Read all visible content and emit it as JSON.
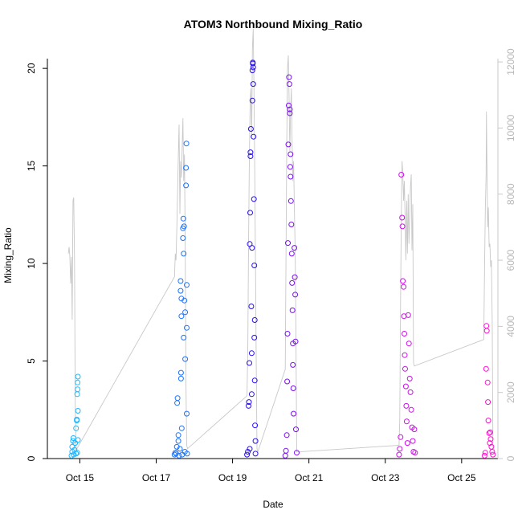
{
  "chart_data": {
    "type": "scatter",
    "title": "ATOM3 Northbound Mixing_Ratio",
    "xlabel": "Date",
    "ylabel": "Mixing_Ratio",
    "x_ticks": [
      "Oct 15",
      "Oct 17",
      "Oct 19",
      "Oct 21",
      "Oct 23",
      "Oct 25"
    ],
    "x_tick_days": [
      15,
      17,
      19,
      21,
      23,
      25
    ],
    "xlim_days": [
      14.15,
      25.95
    ],
    "ylim": [
      0,
      20.5
    ],
    "y_ticks": [
      0,
      5,
      10,
      15,
      20
    ],
    "y2_ticks": [
      0,
      2000,
      4000,
      6000,
      8000,
      10000,
      12000
    ],
    "y2lim": [
      0,
      12100
    ],
    "y2_color": "#b8b8b8",
    "y2_line_color": "#c8c8c8",
    "point_colors": [
      "#1fb6ff",
      "#1a73ff",
      "#2a10f0",
      "#7a10f0",
      "#cc10e8",
      "#ff10d0"
    ],
    "series": [
      {
        "values": [
          [
            14.78,
            0.15
          ],
          [
            14.8,
            0.35
          ],
          [
            14.8,
            0.6
          ],
          [
            14.82,
            0.9
          ],
          [
            14.83,
            1.05
          ],
          [
            14.84,
            0.2
          ],
          [
            14.86,
            0.45
          ],
          [
            14.88,
            0.8
          ],
          [
            14.9,
            0.25
          ],
          [
            14.9,
            1.55
          ],
          [
            14.92,
            1.95
          ],
          [
            14.92,
            2.0
          ],
          [
            14.93,
            0.3
          ],
          [
            14.93,
            3.3
          ],
          [
            14.94,
            3.55
          ],
          [
            14.94,
            3.9
          ],
          [
            14.95,
            4.2
          ],
          [
            14.95,
            2.45
          ],
          [
            14.95,
            0.95
          ]
        ]
      },
      {
        "values": [
          [
            17.48,
            0.2
          ],
          [
            17.5,
            0.3
          ],
          [
            17.52,
            0.25
          ],
          [
            17.54,
            0.6
          ],
          [
            17.55,
            2.85
          ],
          [
            17.56,
            3.1
          ],
          [
            17.58,
            0.9
          ],
          [
            17.58,
            1.2
          ],
          [
            17.6,
            0.15
          ],
          [
            17.62,
            0.5
          ],
          [
            17.64,
            8.6
          ],
          [
            17.64,
            9.1
          ],
          [
            17.65,
            4.1
          ],
          [
            17.65,
            4.4
          ],
          [
            17.66,
            7.3
          ],
          [
            17.66,
            8.2
          ],
          [
            17.67,
            1.55
          ],
          [
            17.68,
            0.2
          ],
          [
            17.7,
            11.8
          ],
          [
            17.7,
            11.3
          ],
          [
            17.71,
            12.3
          ],
          [
            17.72,
            10.5
          ],
          [
            17.72,
            6.2
          ],
          [
            17.73,
            11.9
          ],
          [
            17.74,
            8.1
          ],
          [
            17.75,
            0.35
          ],
          [
            17.76,
            5.1
          ],
          [
            17.76,
            7.5
          ],
          [
            17.78,
            14.9
          ],
          [
            17.78,
            14.0
          ],
          [
            17.79,
            16.15
          ],
          [
            17.8,
            8.9
          ],
          [
            17.8,
            6.7
          ],
          [
            17.8,
            2.3
          ],
          [
            17.81,
            0.25
          ]
        ]
      },
      {
        "values": [
          [
            19.38,
            0.2
          ],
          [
            19.4,
            0.35
          ],
          [
            19.42,
            2.7
          ],
          [
            19.43,
            2.9
          ],
          [
            19.44,
            4.9
          ],
          [
            19.45,
            0.5
          ],
          [
            19.45,
            11.0
          ],
          [
            19.46,
            12.6
          ],
          [
            19.47,
            15.5
          ],
          [
            19.47,
            15.7
          ],
          [
            19.48,
            16.9
          ],
          [
            19.49,
            7.8
          ],
          [
            19.5,
            5.4
          ],
          [
            19.5,
            3.3
          ],
          [
            19.51,
            10.8
          ],
          [
            19.52,
            18.35
          ],
          [
            19.52,
            19.9
          ],
          [
            19.53,
            20.3
          ],
          [
            19.53,
            20.25
          ],
          [
            19.54,
            20.05
          ],
          [
            19.54,
            19.2
          ],
          [
            19.55,
            16.5
          ],
          [
            19.56,
            13.3
          ],
          [
            19.57,
            9.9
          ],
          [
            19.57,
            6.2
          ],
          [
            19.58,
            7.1
          ],
          [
            19.58,
            4.0
          ],
          [
            19.59,
            1.7
          ],
          [
            19.6,
            0.9
          ],
          [
            19.6,
            0.25
          ]
        ]
      },
      {
        "values": [
          [
            20.38,
            0.15
          ],
          [
            20.4,
            0.4
          ],
          [
            20.42,
            1.2
          ],
          [
            20.43,
            3.95
          ],
          [
            20.44,
            6.4
          ],
          [
            20.45,
            11.05
          ],
          [
            20.46,
            16.1
          ],
          [
            20.47,
            18.1
          ],
          [
            20.48,
            19.55
          ],
          [
            20.49,
            19.2
          ],
          [
            20.5,
            17.9
          ],
          [
            20.5,
            17.7
          ],
          [
            20.51,
            14.95
          ],
          [
            20.52,
            15.6
          ],
          [
            20.52,
            14.45
          ],
          [
            20.53,
            13.2
          ],
          [
            20.54,
            12.0
          ],
          [
            20.55,
            10.5
          ],
          [
            20.56,
            9.0
          ],
          [
            20.57,
            7.6
          ],
          [
            20.58,
            5.9
          ],
          [
            20.58,
            4.8
          ],
          [
            20.59,
            3.6
          ],
          [
            20.6,
            2.3
          ],
          [
            20.62,
            10.8
          ],
          [
            20.63,
            9.3
          ],
          [
            20.64,
            8.4
          ],
          [
            20.65,
            6.0
          ],
          [
            20.66,
            1.5
          ],
          [
            20.68,
            0.3
          ]
        ]
      },
      {
        "values": [
          [
            23.36,
            0.2
          ],
          [
            23.38,
            0.5
          ],
          [
            23.4,
            1.1
          ],
          [
            23.42,
            14.55
          ],
          [
            23.44,
            12.35
          ],
          [
            23.45,
            11.9
          ],
          [
            23.46,
            9.1
          ],
          [
            23.48,
            8.8
          ],
          [
            23.49,
            7.3
          ],
          [
            23.5,
            6.4
          ],
          [
            23.51,
            5.3
          ],
          [
            23.52,
            4.6
          ],
          [
            23.54,
            3.7
          ],
          [
            23.55,
            2.7
          ],
          [
            23.56,
            1.9
          ],
          [
            23.58,
            0.8
          ],
          [
            23.6,
            7.35
          ],
          [
            23.62,
            5.9
          ],
          [
            23.64,
            4.1
          ],
          [
            23.66,
            3.4
          ],
          [
            23.68,
            2.5
          ],
          [
            23.7,
            1.6
          ],
          [
            23.72,
            0.9
          ],
          [
            23.74,
            0.35
          ],
          [
            23.76,
            1.5
          ],
          [
            23.78,
            0.3
          ]
        ]
      },
      {
        "values": [
          [
            25.6,
            0.15
          ],
          [
            25.62,
            0.3
          ],
          [
            25.64,
            4.6
          ],
          [
            25.65,
            6.8
          ],
          [
            25.66,
            6.55
          ],
          [
            25.68,
            3.9
          ],
          [
            25.69,
            2.9
          ],
          [
            25.7,
            1.95
          ],
          [
            25.72,
            1.3
          ],
          [
            25.74,
            0.8
          ],
          [
            25.75,
            1.35
          ],
          [
            25.76,
            1.0
          ],
          [
            25.78,
            0.6
          ],
          [
            25.8,
            0.35
          ],
          [
            25.82,
            0.2
          ]
        ]
      }
    ],
    "secondary_line": {
      "color": "#c8c8c8",
      "values": [
        [
          14.7,
          6200
        ],
        [
          14.72,
          6400
        ],
        [
          14.74,
          6100
        ],
        [
          14.76,
          5300
        ],
        [
          14.78,
          6100
        ],
        [
          14.8,
          4200
        ],
        [
          14.82,
          7800
        ],
        [
          14.84,
          7900
        ],
        [
          14.86,
          6000
        ],
        [
          14.88,
          1500
        ],
        [
          14.9,
          200
        ],
        [
          14.92,
          300
        ],
        [
          14.95,
          350
        ],
        [
          17.48,
          5500
        ],
        [
          17.5,
          6200
        ],
        [
          17.52,
          6000
        ],
        [
          17.54,
          7000
        ],
        [
          17.56,
          8000
        ],
        [
          17.58,
          9200
        ],
        [
          17.6,
          10100
        ],
        [
          17.62,
          7400
        ],
        [
          17.64,
          9000
        ],
        [
          17.66,
          8500
        ],
        [
          17.68,
          9400
        ],
        [
          17.7,
          10300
        ],
        [
          17.72,
          8400
        ],
        [
          17.74,
          9200
        ],
        [
          17.76,
          6500
        ],
        [
          17.78,
          2200
        ],
        [
          17.8,
          400
        ],
        [
          17.82,
          300
        ],
        [
          19.38,
          1900
        ],
        [
          19.4,
          3400
        ],
        [
          19.42,
          6500
        ],
        [
          19.44,
          9100
        ],
        [
          19.46,
          10800
        ],
        [
          19.48,
          11200
        ],
        [
          19.5,
          9700
        ],
        [
          19.52,
          12400
        ],
        [
          19.54,
          13000
        ],
        [
          19.56,
          11300
        ],
        [
          19.58,
          8700
        ],
        [
          19.6,
          6000
        ],
        [
          19.62,
          2800
        ],
        [
          19.64,
          300
        ],
        [
          19.66,
          200
        ],
        [
          20.38,
          2700
        ],
        [
          20.4,
          6000
        ],
        [
          20.42,
          9600
        ],
        [
          20.44,
          11800
        ],
        [
          20.46,
          12200
        ],
        [
          20.48,
          11000
        ],
        [
          20.5,
          9300
        ],
        [
          20.52,
          10500
        ],
        [
          20.54,
          11200
        ],
        [
          20.56,
          9600
        ],
        [
          20.58,
          8400
        ],
        [
          20.6,
          9000
        ],
        [
          20.62,
          7500
        ],
        [
          20.64,
          6200
        ],
        [
          20.66,
          3800
        ],
        [
          20.68,
          200
        ],
        [
          23.36,
          400
        ],
        [
          23.38,
          1200
        ],
        [
          23.4,
          4800
        ],
        [
          23.42,
          7300
        ],
        [
          23.44,
          9000
        ],
        [
          23.46,
          8600
        ],
        [
          23.48,
          7800
        ],
        [
          23.5,
          8400
        ],
        [
          23.52,
          7200
        ],
        [
          23.54,
          6000
        ],
        [
          23.56,
          7800
        ],
        [
          23.58,
          6200
        ],
        [
          23.6,
          8000
        ],
        [
          23.62,
          6500
        ],
        [
          23.64,
          7300
        ],
        [
          23.66,
          8200
        ],
        [
          23.68,
          8600
        ],
        [
          23.7,
          6300
        ],
        [
          23.72,
          7700
        ],
        [
          23.74,
          2900
        ],
        [
          23.76,
          2800
        ],
        [
          25.58,
          3600
        ],
        [
          25.6,
          5800
        ],
        [
          25.62,
          7500
        ],
        [
          25.64,
          8600
        ],
        [
          25.65,
          10500
        ],
        [
          25.66,
          9200
        ],
        [
          25.68,
          7000
        ],
        [
          25.7,
          7600
        ],
        [
          25.72,
          6400
        ],
        [
          25.74,
          6500
        ],
        [
          25.76,
          5800
        ],
        [
          25.78,
          6000
        ],
        [
          25.8,
          4200
        ],
        [
          25.82,
          300
        ]
      ]
    }
  }
}
